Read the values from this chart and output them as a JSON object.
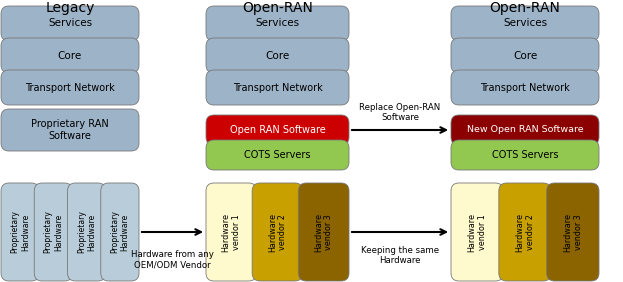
{
  "title_legacy": "Legacy",
  "title_openran1": "Open-RAN",
  "title_openran2": "Open-RAN",
  "box_color_gray": "#9DB3C8",
  "box_color_red": "#CC0000",
  "box_color_darkred": "#8B0000",
  "box_color_green": "#92C850",
  "hw_color1": "#FFFACD",
  "hw_color2": "#C8A000",
  "hw_color3": "#8B6400",
  "hw_color_prop": "#B8CDD9",
  "bg_color": "#FFFFFF"
}
